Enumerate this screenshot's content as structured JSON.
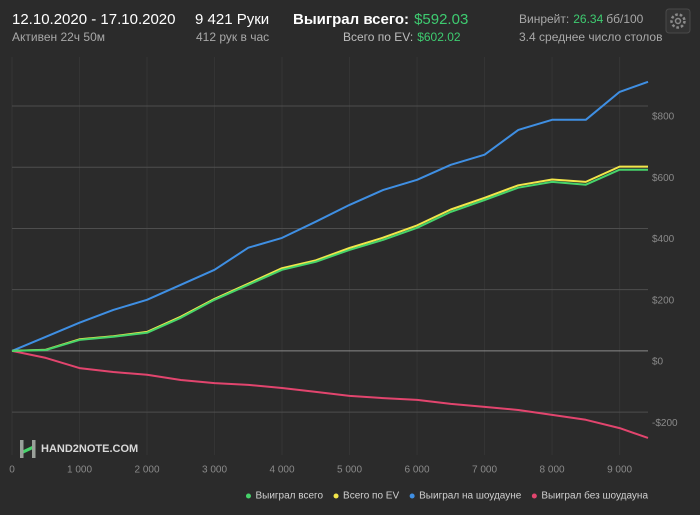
{
  "header": {
    "dates": "12.10.2020 - 17.10.2020",
    "active": "Активен 22ч 50м",
    "hands": "9 421 Руки",
    "hands_per_hour": "412 рук в час",
    "won_label": "Выиграл всего:",
    "won_value": "$592.03",
    "ev_label": "Всего по EV:",
    "ev_value": "$602.02",
    "winrate_label": "Винрейт:",
    "winrate_value": "26.34",
    "winrate_unit": "бб/100",
    "tables": "3.4 среднее число столов"
  },
  "logo": "HAND2NOTE.COM",
  "chart_data": {
    "type": "line",
    "x": [
      0,
      500,
      1000,
      1500,
      2000,
      2500,
      3000,
      3500,
      4000,
      4500,
      5000,
      5500,
      6000,
      6500,
      7000,
      7500,
      8000,
      8500,
      9000,
      9421
    ],
    "series": [
      {
        "name": "Выиграл всего",
        "color": "#46d36a",
        "values": [
          0,
          3,
          36,
          46,
          59,
          108,
          167,
          216,
          265,
          291,
          330,
          363,
          402,
          454,
          493,
          533,
          552,
          543,
          592,
          592
        ]
      },
      {
        "name": "Всего по EV",
        "color": "#f2e64a",
        "values": [
          0,
          4,
          38,
          48,
          62,
          112,
          170,
          220,
          270,
          296,
          336,
          370,
          410,
          462,
          500,
          541,
          560,
          552,
          602,
          602
        ]
      },
      {
        "name": "Выиграл на шоудауне",
        "color": "#3f8fe3",
        "values": [
          0,
          46,
          92,
          134,
          167,
          216,
          265,
          337,
          369,
          422,
          477,
          526,
          559,
          608,
          641,
          722,
          755,
          755,
          846,
          879
        ]
      },
      {
        "name": "Выиграл без шоудауна",
        "color": "#e2456e",
        "values": [
          0,
          -23,
          -56,
          -69,
          -78,
          -95,
          -105,
          -111,
          -121,
          -134,
          -147,
          -154,
          -160,
          -173,
          -183,
          -193,
          -209,
          -225,
          -252,
          -284
        ]
      }
    ],
    "xlim": [
      0,
      9421
    ],
    "ylim": [
      -340,
      960
    ],
    "xticks": [
      0,
      {
        "value": 1000,
        "label": "1 000"
      },
      {
        "value": 2000,
        "label": "2 000"
      },
      {
        "value": 3000,
        "label": "3 000"
      },
      {
        "value": 4000,
        "label": "4 000"
      },
      {
        "value": 5000,
        "label": "5 000"
      },
      {
        "value": 6000,
        "label": "6 000"
      },
      {
        "value": 7000,
        "label": "7 000"
      },
      {
        "value": 8000,
        "label": "8 000"
      },
      {
        "value": 9000,
        "label": "9 000"
      }
    ],
    "yticks": [
      {
        "value": -200,
        "label": "-$200"
      },
      {
        "value": 0,
        "label": "$0"
      },
      {
        "value": 200,
        "label": "$200"
      },
      {
        "value": 400,
        "label": "$400"
      },
      {
        "value": 600,
        "label": "$600"
      },
      {
        "value": 800,
        "label": "$800"
      }
    ],
    "grid": true,
    "legend": "bottom-right"
  }
}
